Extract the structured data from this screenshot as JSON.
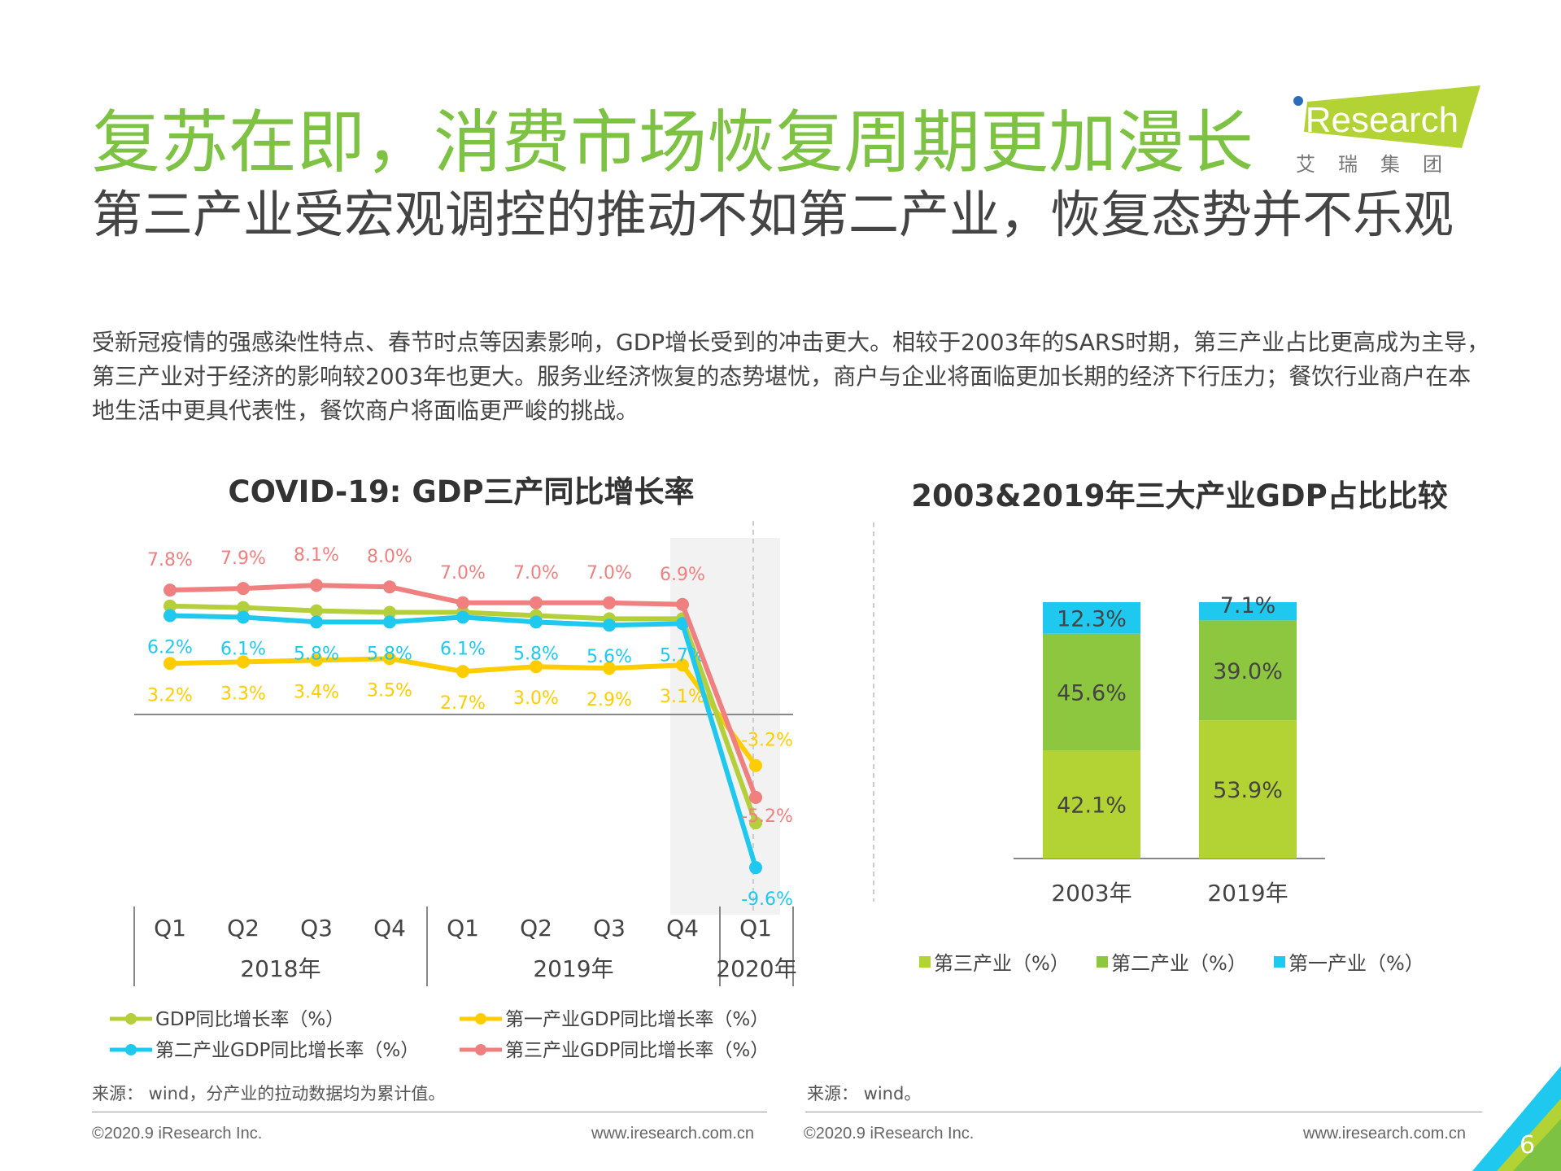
{
  "header": {
    "title": "复苏在即，消费市场恢复周期更加漫长",
    "subtitle": "第三产业受宏观调控的推动不如第二产业，恢复态势并不乐观",
    "paragraph": "受新冠疫情的强感染性特点、春节时点等因素影响，GDP增长受到的冲击更大。相较于2003年的SARS时期，第三产业占比更高成为主导，第三产业对于经济的影响较2003年也更大。服务业经济恢复的态势堪忧，商户与企业将面临更加长期的经济下行压力；餐饮行业商户在本地生活中更具代表性，餐饮商户将面临更严峻的挑战。"
  },
  "logo": {
    "text": "iResearch",
    "sub": "艾 瑞 集 团",
    "color": "#b3d234"
  },
  "colors": {
    "title": "#7dc242",
    "gdp": "#b4cf3a",
    "primary": "#ffcc00",
    "secondary": "#1fc8ef",
    "tertiary": "#f08080",
    "bar_tertiary": "#b3d234",
    "bar_secondary": "#8dc63f",
    "bar_primary": "#1fc8ef"
  },
  "chart_data": [
    {
      "type": "line",
      "title": "COVID-19: GDP三产同比增长率",
      "categories": [
        "Q1",
        "Q2",
        "Q3",
        "Q4",
        "Q1",
        "Q2",
        "Q3",
        "Q4",
        "Q1"
      ],
      "groups": [
        {
          "label": "2018年"
        },
        {
          "label": "2019年"
        },
        {
          "label": "2020年"
        }
      ],
      "series": [
        {
          "name": "GDP同比增长率（%）",
          "values": [
            6.8,
            6.7,
            6.5,
            6.4,
            6.4,
            6.2,
            6.0,
            6.0,
            -6.8
          ],
          "labeled": false
        },
        {
          "name": "第一产业GDP同比增长率（%）",
          "values": [
            3.2,
            3.3,
            3.4,
            3.5,
            2.7,
            3.0,
            2.9,
            3.1,
            -3.2
          ],
          "labeled": true
        },
        {
          "name": "第二产业GDP同比增长率（%）",
          "values": [
            6.2,
            6.1,
            5.8,
            5.8,
            6.1,
            5.8,
            5.6,
            5.7,
            -9.6
          ],
          "labeled": true
        },
        {
          "name": "第三产业GDP同比增长率（%）",
          "values": [
            7.8,
            7.9,
            8.1,
            8.0,
            7.0,
            7.0,
            7.0,
            6.9,
            -5.2
          ],
          "labeled": true
        }
      ],
      "highlight": "2020年Q1",
      "legend": "bottom",
      "grid": false
    },
    {
      "type": "bar",
      "stacked": true,
      "title": "2003&2019年三大产业GDP占比比较",
      "categories": [
        "2003年",
        "2019年"
      ],
      "series": [
        {
          "name": "第三产业（%）",
          "values": [
            42.1,
            53.9
          ]
        },
        {
          "name": "第二产业（%）",
          "values": [
            45.6,
            39.0
          ]
        },
        {
          "name": "第一产业（%）",
          "values": [
            12.3,
            7.1
          ]
        }
      ],
      "legend": "bottom",
      "ylim": [
        0,
        100
      ]
    }
  ],
  "footer": {
    "source_left": "来源： wind，分产业的拉动数据均为累计值。",
    "source_right": "来源： wind。",
    "copyright": "©2020.9 iResearch Inc.",
    "url": "www.iresearch.com.cn",
    "page": "6"
  }
}
